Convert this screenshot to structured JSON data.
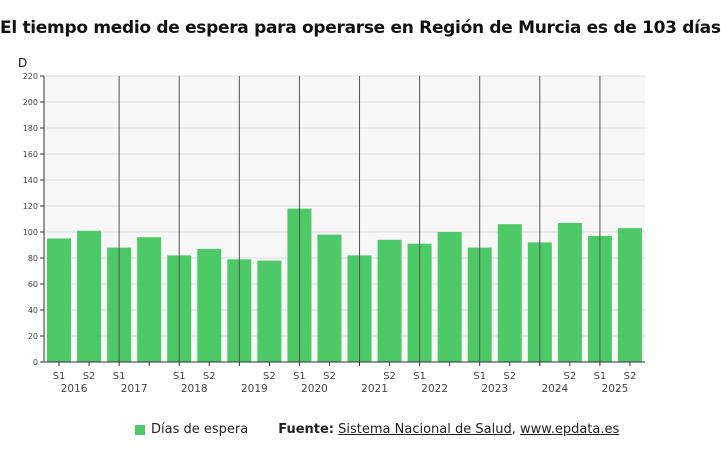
{
  "chart_data": {
    "type": "bar",
    "title": "El tiempo medio de espera para operarse en Región de Murcia es de 103 días",
    "ylabel": "D",
    "ylim": [
      0,
      220
    ],
    "yticks": [
      0,
      20,
      40,
      60,
      80,
      100,
      120,
      140,
      160,
      180,
      200,
      220
    ],
    "grid": true,
    "legend_position": "bottom",
    "color": "#4ec968",
    "categories": [
      "2016 S1",
      "2016 S2",
      "2017 S1",
      "2017 S2",
      "2018 S1",
      "2018 S2",
      "2019 S1",
      "2019 S2",
      "2020 S1",
      "2020 S2",
      "2021 S1",
      "2021 S2",
      "2022 S1",
      "2022 S2",
      "2023 S1",
      "2023 S2",
      "2024 S1",
      "2024 S2",
      "2025 S1",
      "2025 S2"
    ],
    "semester_labels": [
      "S1",
      "S2",
      "S1",
      "",
      "S1",
      "S2",
      "",
      "S2",
      "S1",
      "S2",
      "",
      "S2",
      "S1",
      "",
      "S1",
      "S2",
      "",
      "S2",
      "S1",
      "S2"
    ],
    "year_labels": [
      "2016",
      "2017",
      "2018",
      "2019",
      "2020",
      "2021",
      "2022",
      "2023",
      "2024",
      "2025"
    ],
    "series": [
      {
        "name": "Días de espera",
        "values": [
          95,
          101,
          88,
          96,
          82,
          87,
          79,
          78,
          118,
          98,
          82,
          94,
          91,
          100,
          88,
          106,
          92,
          107,
          97,
          103
        ]
      }
    ]
  },
  "footer": {
    "legend_label": "Días de espera",
    "source_prefix": "Fuente:",
    "source_text": "Sistema Nacional de Salud",
    "separator": ", ",
    "site": "www.epdata.es"
  }
}
